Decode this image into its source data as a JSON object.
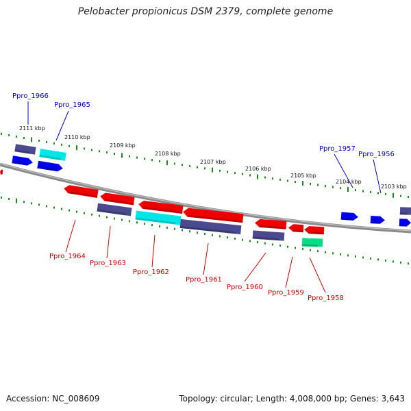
{
  "title": "Pelobacter propionicus DSM 2379, complete genome",
  "footer": {
    "accession": "Accession: NC_008609",
    "topology": "Topology: circular; Length: 4,008,000 bp; Genes: 3,643"
  },
  "colors": {
    "backbone": "#8a8a8a",
    "tick": "#1a8a1a",
    "label_plus": "#0000c8",
    "label_minus": "#cc0000",
    "kbp_text": "#111111"
  },
  "scale_labels": [
    "2111 kbp",
    "2110 kbp",
    "2109 kbp",
    "2108 kbp",
    "2107 kbp",
    "2106 kbp",
    "2105 kbp",
    "2104 kbp",
    "2103 kbp"
  ],
  "genes_plus": [
    {
      "name": "Ppro_1966",
      "label": "Ppro_1966"
    },
    {
      "name": "Ppro_1965",
      "label": "Ppro_1965"
    },
    {
      "name": "Ppro_1957",
      "label": "Ppro_1957"
    },
    {
      "name": "Ppro_1956",
      "label": "Ppro_1956"
    }
  ],
  "genes_minus": [
    {
      "name": "Ppro_1964",
      "label": "Ppro_1964"
    },
    {
      "name": "Ppro_1963",
      "label": "Ppro_1963"
    },
    {
      "name": "Ppro_1962",
      "label": "Ppro_1962"
    },
    {
      "name": "Ppro_1961",
      "label": "Ppro_1961"
    },
    {
      "name": "Ppro_1960",
      "label": "Ppro_1960"
    },
    {
      "name": "Ppro_1959",
      "label": "Ppro_1959"
    },
    {
      "name": "Ppro_1958",
      "label": "Ppro_1958"
    }
  ]
}
